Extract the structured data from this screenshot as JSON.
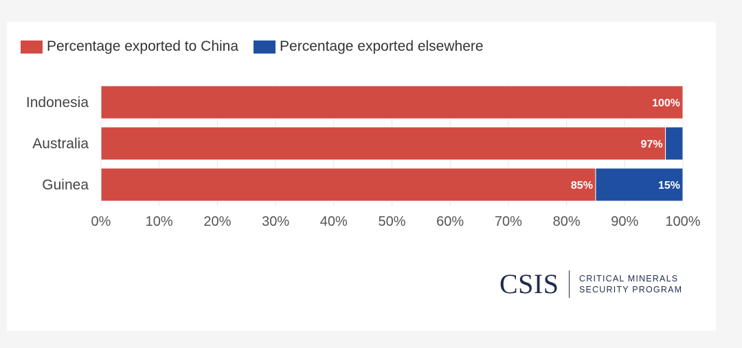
{
  "chart_data": {
    "type": "bar",
    "orientation": "horizontal",
    "stacked": true,
    "categories": [
      "Indonesia",
      "Australia",
      "Guinea"
    ],
    "series": [
      {
        "name": "Percentage exported to China",
        "values": [
          100,
          97,
          85
        ],
        "labels": [
          "100%",
          "97%",
          "85%"
        ],
        "color": "#d14b43"
      },
      {
        "name": "Percentage exported elsewhere",
        "values": [
          0,
          3,
          15
        ],
        "labels": [
          "",
          "",
          "15%"
        ],
        "color": "#1f4fa0"
      }
    ],
    "xlim": [
      0,
      100
    ],
    "xticks": [
      "0%",
      "10%",
      "20%",
      "30%",
      "40%",
      "50%",
      "60%",
      "70%",
      "80%",
      "90%",
      "100%"
    ],
    "grid": true,
    "legend_position": "top-left"
  },
  "branding": {
    "wordmark": "CSIS",
    "subtitle_lines": [
      "CRITICAL MINERALS",
      "SECURITY PROGRAM"
    ]
  }
}
